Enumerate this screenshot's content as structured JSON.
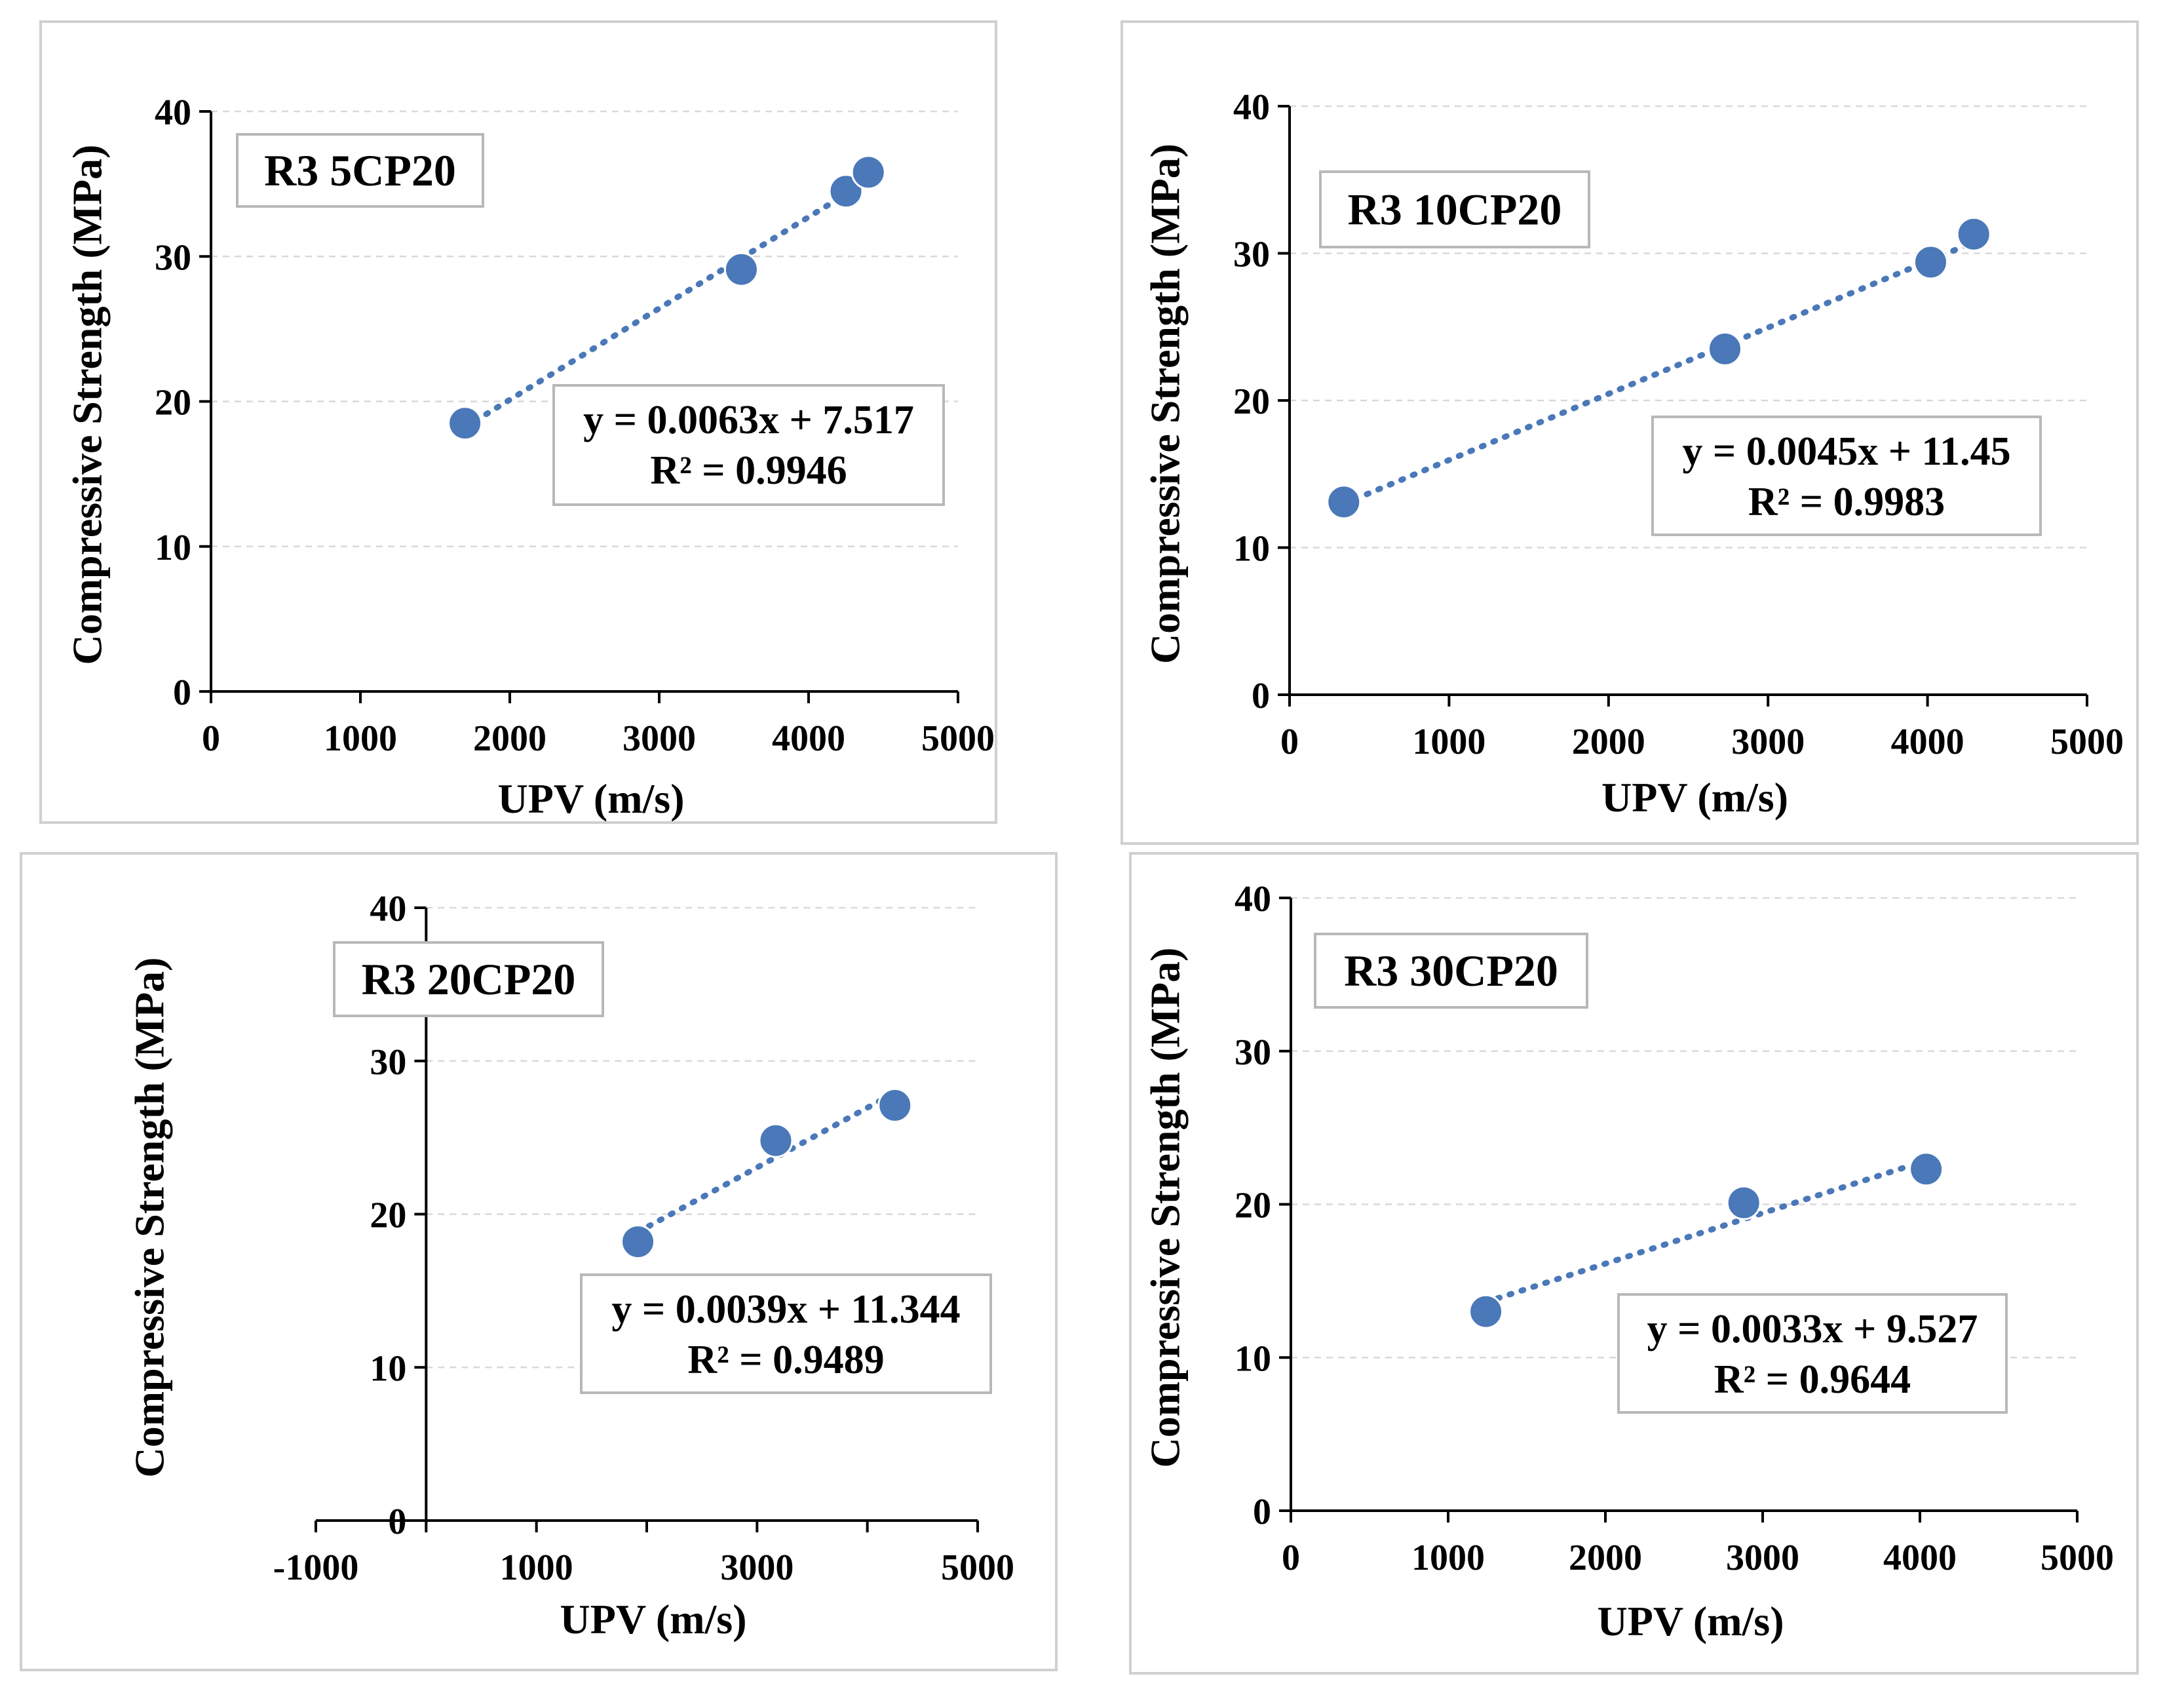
{
  "chart_data": [
    {
      "type": "scatter",
      "title": "R3 5CP20",
      "xlabel": "UPV (m/s)",
      "ylabel": "Compressive Strength (MPa)",
      "xlim": [
        0,
        5000
      ],
      "ylim": [
        0,
        40
      ],
      "xticks": [
        "0",
        "1000",
        "2000",
        "3000",
        "4000",
        "5000"
      ],
      "yticks": [
        "0",
        "10",
        "20",
        "30",
        "40"
      ],
      "grid": true,
      "points": [
        [
          1700,
          18.5
        ],
        [
          3550,
          29.1
        ],
        [
          4250,
          34.5
        ],
        [
          4400,
          35.8
        ]
      ],
      "trendline": {
        "type": "linear",
        "slope": 0.0063,
        "intercept": 7.517
      },
      "equation": "y = 0.0063x + 7.517",
      "r_squared": "R² = 0.9946"
    },
    {
      "type": "scatter",
      "title": "R3 10CP20",
      "xlabel": "UPV (m/s)",
      "ylabel": "Compressive Strength (MPa)",
      "xlim": [
        0,
        5000
      ],
      "ylim": [
        0,
        40
      ],
      "xticks": [
        "0",
        "1000",
        "2000",
        "3000",
        "4000",
        "5000"
      ],
      "yticks": [
        "0",
        "10",
        "20",
        "30",
        "40"
      ],
      "grid": true,
      "points": [
        [
          340,
          13.1
        ],
        [
          2730,
          23.5
        ],
        [
          4020,
          29.4
        ],
        [
          4290,
          31.3
        ]
      ],
      "trendline": {
        "type": "linear",
        "slope": 0.0045,
        "intercept": 11.45
      },
      "equation": "y = 0.0045x + 11.45",
      "r_squared": "R² = 0.9983"
    },
    {
      "type": "scatter",
      "title": "R3 20CP20",
      "xlabel": "UPV (m/s)",
      "ylabel": "Compressive Strength (MPa)",
      "xlim": [
        -1000,
        5000
      ],
      "ylim": [
        0,
        40
      ],
      "xticks": [
        "-1000",
        "1000",
        "3000",
        "5000"
      ],
      "yticks": [
        "0",
        "10",
        "20",
        "30",
        "40"
      ],
      "grid": true,
      "points": [
        [
          1920,
          18.2
        ],
        [
          3170,
          24.8
        ],
        [
          4250,
          27.1
        ]
      ],
      "trendline": {
        "type": "linear",
        "slope": 0.0039,
        "intercept": 11.344
      },
      "equation": "y = 0.0039x + 11.344",
      "r_squared": "R² = 0.9489"
    },
    {
      "type": "scatter",
      "title": "R3 30CP20",
      "xlabel": "UPV (m/s)",
      "ylabel": "Compressive Strength (MPa)",
      "xlim": [
        0,
        5000
      ],
      "ylim": [
        0,
        40
      ],
      "xticks": [
        "0",
        "1000",
        "2000",
        "3000",
        "4000",
        "5000"
      ],
      "yticks": [
        "0",
        "10",
        "20",
        "30",
        "40"
      ],
      "grid": true,
      "points": [
        [
          1240,
          13.0
        ],
        [
          2880,
          20.1
        ],
        [
          4040,
          22.3
        ]
      ],
      "trendline": {
        "type": "linear",
        "slope": 0.0033,
        "intercept": 9.527
      },
      "equation": "y = 0.0033x + 9.527",
      "r_squared": "R² = 0.9644"
    }
  ]
}
